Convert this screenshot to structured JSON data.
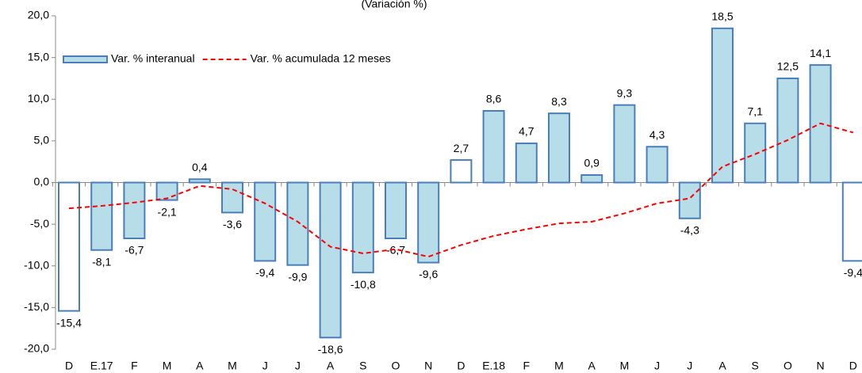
{
  "chart_data": {
    "type": "bar",
    "title": "(Variación %)",
    "categories": [
      "D",
      "E.17",
      "F",
      "M",
      "A",
      "M",
      "J",
      "J",
      "A",
      "S",
      "O",
      "N",
      "D",
      "E.18",
      "F",
      "M",
      "A",
      "M",
      "J",
      "J",
      "A",
      "S",
      "O",
      "N",
      "D"
    ],
    "series": [
      {
        "name": "Var. % interanual",
        "type": "bar",
        "color": "#b6dde8",
        "edgecolor": "#4a7ebb",
        "colors": [
          "#ffffff",
          "#b6dde8",
          "#b6dde8",
          "#b6dde8",
          "#b6dde8",
          "#b6dde8",
          "#b6dde8",
          "#b6dde8",
          "#b6dde8",
          "#b6dde8",
          "#b6dde8",
          "#b6dde8",
          "#ffffff",
          "#b6dde8",
          "#b6dde8",
          "#b6dde8",
          "#b6dde8",
          "#b6dde8",
          "#b6dde8",
          "#b6dde8",
          "#b6dde8",
          "#b6dde8",
          "#b6dde8",
          "#b6dde8",
          "#ffffff"
        ],
        "values": [
          -15.4,
          -8.1,
          -6.7,
          -2.1,
          0.4,
          -3.6,
          -9.4,
          -9.9,
          -18.6,
          -10.8,
          -6.7,
          -9.6,
          2.7,
          8.6,
          4.7,
          8.3,
          0.9,
          9.3,
          4.3,
          -4.3,
          18.5,
          7.1,
          12.5,
          14.1,
          -9.4
        ],
        "value_labels": [
          "-15,4",
          "-8,1",
          "-6,7",
          "-2,1",
          "0,4",
          "-3,6",
          "-9,4",
          "-9,9",
          "-18,6",
          "-10,8",
          "-6,7",
          "-9,6",
          "2,7",
          "8,6",
          "4,7",
          "8,3",
          "0,9",
          "9,3",
          "4,3",
          "-4,3",
          "18,5",
          "7,1",
          "12,5",
          "14,1",
          "-9,4"
        ]
      },
      {
        "name": "Var. % acumulada 12 meses",
        "type": "line",
        "color": "#ff0000",
        "linestyle": "dashed",
        "values": [
          -3.1,
          -2.8,
          -2.4,
          -1.9,
          -0.4,
          -0.8,
          -2.5,
          -4.7,
          -7.7,
          -8.5,
          -8.0,
          -8.9,
          -7.5,
          -6.4,
          -5.6,
          -4.9,
          -4.7,
          -3.7,
          -2.5,
          -1.9,
          1.9,
          3.4,
          5.1,
          7.1,
          6.0
        ]
      }
    ],
    "ylim": [
      -20,
      20
    ],
    "yticks": [
      {
        "value": -20,
        "label": "-20,0"
      },
      {
        "value": -15,
        "label": "-15,0"
      },
      {
        "value": -10,
        "label": "-10,0"
      },
      {
        "value": -5,
        "label": "-5,0"
      },
      {
        "value": 0,
        "label": "0,0"
      },
      {
        "value": 5,
        "label": "5,0"
      },
      {
        "value": 10,
        "label": "10,0"
      },
      {
        "value": 15,
        "label": "15,0"
      },
      {
        "value": 20,
        "label": "20,0"
      }
    ],
    "legend": "upper left"
  }
}
